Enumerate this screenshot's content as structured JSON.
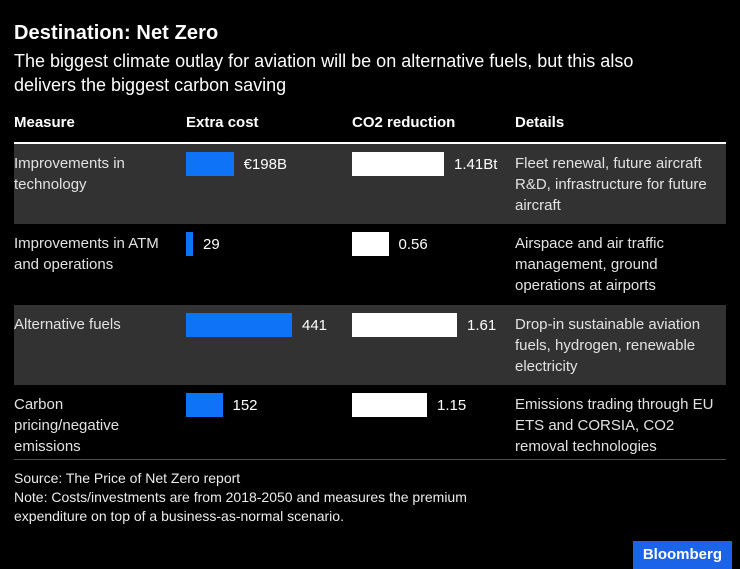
{
  "title": "Destination: Net Zero",
  "subtitle": "The biggest climate outlay for aviation will be on alternative fuels, but this also delivers the biggest carbon saving",
  "columns": {
    "measure": "Measure",
    "cost": "Extra cost",
    "co2": "CO2 reduction",
    "details": "Details"
  },
  "rows": [
    {
      "measure": "Improvements in technology",
      "cost": 198,
      "cost_label": "€198B",
      "co2": 1.41,
      "co2_label": "1.41Bt",
      "details": "Fleet renewal, future aircraft R&D, infrastructure for future aircraft"
    },
    {
      "measure": "Improvements in ATM and operations",
      "cost": 29,
      "cost_label": "29",
      "co2": 0.56,
      "co2_label": "0.56",
      "details": "Airspace and air traffic management, ground operations at airports"
    },
    {
      "measure": "Alternative fuels",
      "cost": 441,
      "cost_label": "441",
      "co2": 1.61,
      "co2_label": "1.61",
      "details": "Drop-in sustainable aviation fuels, hydrogen, renewable electricity"
    },
    {
      "measure": "Carbon pricing/negative emissions",
      "cost": 152,
      "cost_label": "152",
      "co2": 1.15,
      "co2_label": "1.15",
      "details": "Emissions trading through EU ETS and CORSIA, CO2 removal technologies"
    }
  ],
  "chart_data": {
    "type": "bar",
    "title": "Destination: Net Zero",
    "subtitle": "The biggest climate outlay for aviation will be on alternative fuels, but this also delivers the biggest carbon saving",
    "categories": [
      "Improvements in technology",
      "Improvements in ATM and operations",
      "Alternative fuels",
      "Carbon pricing/negative emissions"
    ],
    "series": [
      {
        "name": "Extra cost",
        "unit": "€B",
        "values": [
          198,
          29,
          441,
          152
        ],
        "color": "#0e73f6",
        "data_labels": [
          "€198B",
          "29",
          "441",
          "152"
        ]
      },
      {
        "name": "CO2 reduction",
        "unit": "Bt",
        "values": [
          1.41,
          0.56,
          1.61,
          1.15
        ],
        "color": "#ffffff",
        "data_labels": [
          "1.41Bt",
          "0.56",
          "1.61",
          "1.15"
        ]
      }
    ],
    "details_column": [
      "Fleet renewal, future aircraft R&D, infrastructure for future aircraft",
      "Airspace and air traffic management, ground operations at airports",
      "Drop-in sustainable aviation fuels, hydrogen, renewable electricity",
      "Emissions trading through EU ETS and CORSIA, CO2 removal technologies"
    ],
    "orientation": "horizontal",
    "grid": false,
    "legend": false
  },
  "footer": {
    "source": "Source: The Price of Net Zero report",
    "note": "Note: Costs/investments are from 2018-2050 and measures the premium expenditure on top of a business-as-normal scenario.",
    "logo": "Bloomberg"
  },
  "colors": {
    "background": "#000000",
    "row_shade": "#323232",
    "cost_bar": "#0e73f6",
    "co2_bar": "#ffffff",
    "logo_blue": "#1b63e8",
    "text": "#ffffff"
  }
}
